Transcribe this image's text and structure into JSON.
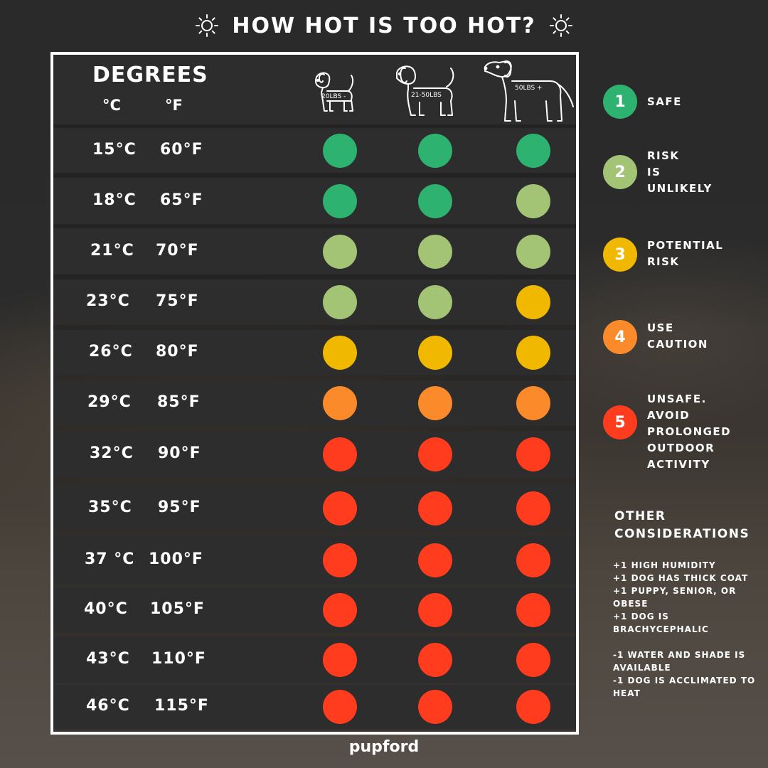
{
  "title": "HOW HOT IS TOO HOT?",
  "header": {
    "degrees": "DEGREES",
    "unit_c": "°C",
    "unit_f": "°F",
    "dogs": [
      {
        "label": "20LBS -",
        "icon": "small-dog-icon"
      },
      {
        "label": "21-50LBS",
        "icon": "medium-dog-icon"
      },
      {
        "label": "50LBS +",
        "icon": "large-dog-icon"
      }
    ]
  },
  "colors": {
    "1": "#2db36f",
    "2": "#a3c475",
    "3": "#f1b800",
    "4": "#fb8a2a",
    "5": "#ff3c1e"
  },
  "rows": [
    {
      "c": "15°C",
      "f": "60°F",
      "levels": [
        1,
        1,
        1
      ]
    },
    {
      "c": "18°C",
      "f": "65°F",
      "levels": [
        1,
        1,
        2
      ]
    },
    {
      "c": "21°C",
      "f": "70°F",
      "levels": [
        2,
        2,
        2
      ]
    },
    {
      "c": "23°C",
      "f": "75°F",
      "levels": [
        2,
        2,
        3
      ]
    },
    {
      "c": "26°C",
      "f": "80°F",
      "levels": [
        3,
        3,
        3
      ]
    },
    {
      "c": "29°C",
      "f": "85°F",
      "levels": [
        4,
        4,
        4
      ]
    },
    {
      "c": "32°C",
      "f": "90°F",
      "levels": [
        5,
        5,
        5
      ]
    },
    {
      "c": "35°C",
      "f": "95°F",
      "levels": [
        5,
        5,
        5
      ]
    },
    {
      "c": "37 °C",
      "f": "100°F",
      "levels": [
        5,
        5,
        5
      ]
    },
    {
      "c": "40°C",
      "f": "105°F",
      "levels": [
        5,
        5,
        5
      ]
    },
    {
      "c": "43°C",
      "f": "110°F",
      "levels": [
        5,
        5,
        5
      ]
    },
    {
      "c": "46°C",
      "f": "115°F",
      "levels": [
        5,
        5,
        5
      ]
    }
  ],
  "legend": [
    {
      "num": "1",
      "text": "SAFE"
    },
    {
      "num": "2",
      "text": "RISK\nIS\nUNLIKELY"
    },
    {
      "num": "3",
      "text": "POTENTIAL\nRISK"
    },
    {
      "num": "4",
      "text": "USE\nCAUTION"
    },
    {
      "num": "5",
      "text": "UNSAFE.\nAVOID\nPROLONGED\nOUTDOOR\nACTIVITY"
    }
  ],
  "other": {
    "title_line1": "OTHER",
    "title_line2": "CONSIDERATIONS",
    "lines": [
      " +1 HIGH HUMIDITY",
      "+1 DOG HAS THICK COAT",
      "+1 PUPPY, SENIOR, OR",
      "OBESE",
      "+1 DOG IS",
      "BRACHYCEPHALIC",
      "",
      "-1 WATER AND SHADE IS",
      "AVAILABLE",
      "-1 DOG IS ACCLIMATED TO",
      "HEAT"
    ]
  },
  "brand": "pupford"
}
